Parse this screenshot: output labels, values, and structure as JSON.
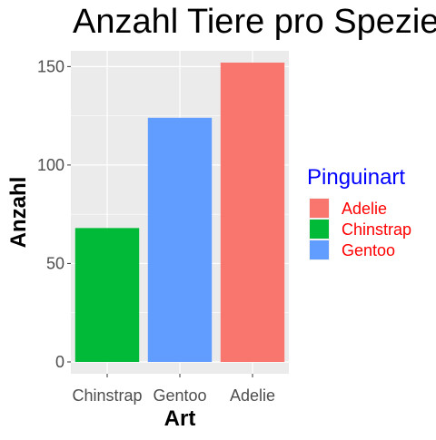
{
  "chart_data": {
    "type": "bar",
    "title": "Anzahl Tiere pro Spezies",
    "xlabel": "Art",
    "ylabel": "Anzahl",
    "categories": [
      "Chinstrap",
      "Gentoo",
      "Adelie"
    ],
    "values": [
      68,
      124,
      152
    ],
    "ylim": [
      0,
      160
    ],
    "yticks": [
      0,
      50,
      100,
      150
    ],
    "grid": true,
    "legend": {
      "title": "Pinguinart",
      "placement": "right",
      "entries": [
        {
          "label": "Adelie",
          "color": "#F8766D"
        },
        {
          "label": "Chinstrap",
          "color": "#00BA38"
        },
        {
          "label": "Gentoo",
          "color": "#619CFF"
        }
      ]
    },
    "bar_colors": [
      "#00BA38",
      "#619CFF",
      "#F8766D"
    ],
    "panel_color": "#EBEBEB",
    "legend_title_color": "#0000FF",
    "legend_label_color": "#FF0000"
  }
}
